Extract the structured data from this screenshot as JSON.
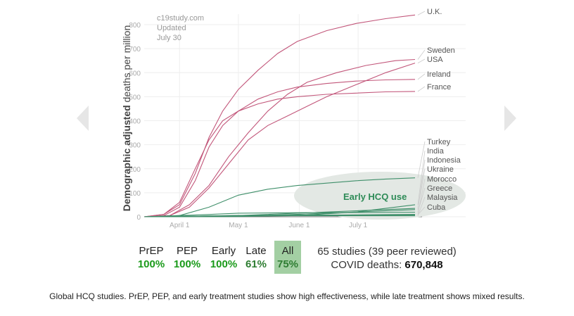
{
  "navigation": {
    "prev_icon": "chevron-left-icon",
    "next_icon": "chevron-right-icon"
  },
  "chart_data": {
    "type": "line",
    "source_note": [
      "c19study.com",
      "Updated",
      "July 30"
    ],
    "ylabel_bold": "Demographic adjusted",
    "ylabel_rest": " deaths per million",
    "ylim": [
      0,
      800
    ],
    "y_ticks": [
      0,
      100,
      200,
      300,
      400,
      500,
      600,
      700,
      800
    ],
    "x_ticks": [
      {
        "label": "April 1",
        "day": 0
      },
      {
        "label": "May 1",
        "day": 30
      },
      {
        "label": "June 1",
        "day": 61
      },
      {
        "label": "July 1",
        "day": 91
      }
    ],
    "x_range_days": [
      -18,
      120
    ],
    "grid": true,
    "annotation": "Early HCQ use",
    "colors": {
      "high": "#c2567a",
      "low": "#3f8f6a",
      "annotation": "#2e8b57"
    },
    "series": [
      {
        "name": "U.K.",
        "group": "high",
        "points": [
          [
            -18,
            0
          ],
          [
            -8,
            10
          ],
          [
            0,
            50
          ],
          [
            8,
            180
          ],
          [
            15,
            330
          ],
          [
            22,
            440
          ],
          [
            30,
            530
          ],
          [
            40,
            610
          ],
          [
            50,
            680
          ],
          [
            60,
            730
          ],
          [
            75,
            775
          ],
          [
            90,
            805
          ],
          [
            105,
            825
          ],
          [
            120,
            840
          ]
        ]
      },
      {
        "name": "Sweden",
        "group": "high",
        "points": [
          [
            -18,
            0
          ],
          [
            -5,
            5
          ],
          [
            5,
            50
          ],
          [
            15,
            130
          ],
          [
            25,
            250
          ],
          [
            35,
            350
          ],
          [
            45,
            440
          ],
          [
            55,
            510
          ],
          [
            65,
            560
          ],
          [
            80,
            600
          ],
          [
            95,
            630
          ],
          [
            110,
            650
          ],
          [
            120,
            655
          ]
        ]
      },
      {
        "name": "USA",
        "group": "high",
        "points": [
          [
            -18,
            0
          ],
          [
            -5,
            5
          ],
          [
            5,
            40
          ],
          [
            15,
            120
          ],
          [
            25,
            220
          ],
          [
            35,
            320
          ],
          [
            45,
            380
          ],
          [
            55,
            420
          ],
          [
            65,
            460
          ],
          [
            75,
            500
          ],
          [
            90,
            550
          ],
          [
            105,
            600
          ],
          [
            120,
            640
          ]
        ]
      },
      {
        "name": "Ireland",
        "group": "high",
        "points": [
          [
            -18,
            0
          ],
          [
            -8,
            5
          ],
          [
            0,
            40
          ],
          [
            8,
            150
          ],
          [
            15,
            290
          ],
          [
            22,
            380
          ],
          [
            30,
            440
          ],
          [
            40,
            490
          ],
          [
            50,
            520
          ],
          [
            60,
            540
          ],
          [
            75,
            555
          ],
          [
            90,
            565
          ],
          [
            105,
            570
          ],
          [
            120,
            572
          ]
        ]
      },
      {
        "name": "France",
        "group": "high",
        "points": [
          [
            -18,
            0
          ],
          [
            -8,
            10
          ],
          [
            0,
            60
          ],
          [
            8,
            200
          ],
          [
            15,
            320
          ],
          [
            22,
            400
          ],
          [
            30,
            440
          ],
          [
            40,
            470
          ],
          [
            50,
            490
          ],
          [
            60,
            500
          ],
          [
            75,
            510
          ],
          [
            90,
            515
          ],
          [
            105,
            520
          ],
          [
            120,
            522
          ]
        ]
      },
      {
        "name": "Turkey",
        "group": "low",
        "points": [
          [
            -18,
            0
          ],
          [
            0,
            5
          ],
          [
            15,
            40
          ],
          [
            30,
            90
          ],
          [
            45,
            115
          ],
          [
            60,
            130
          ],
          [
            75,
            140
          ],
          [
            90,
            150
          ],
          [
            105,
            157
          ],
          [
            120,
            162
          ]
        ]
      },
      {
        "name": "India",
        "group": "low",
        "points": [
          [
            -18,
            0
          ],
          [
            30,
            1
          ],
          [
            60,
            5
          ],
          [
            90,
            20
          ],
          [
            120,
            50
          ]
        ]
      },
      {
        "name": "Indonesia",
        "group": "low",
        "points": [
          [
            -18,
            0
          ],
          [
            30,
            3
          ],
          [
            60,
            10
          ],
          [
            90,
            20
          ],
          [
            120,
            30
          ]
        ]
      },
      {
        "name": "Ukraine",
        "group": "low",
        "points": [
          [
            -18,
            0
          ],
          [
            30,
            5
          ],
          [
            60,
            15
          ],
          [
            90,
            25
          ],
          [
            120,
            35
          ]
        ]
      },
      {
        "name": "Morocco",
        "group": "low",
        "points": [
          [
            -18,
            0
          ],
          [
            30,
            5
          ],
          [
            60,
            6
          ],
          [
            90,
            8
          ],
          [
            120,
            10
          ]
        ]
      },
      {
        "name": "Greece",
        "group": "low",
        "points": [
          [
            -18,
            0
          ],
          [
            10,
            8
          ],
          [
            30,
            15
          ],
          [
            60,
            17
          ],
          [
            90,
            18
          ],
          [
            120,
            19
          ]
        ]
      },
      {
        "name": "Malaysia",
        "group": "low",
        "points": [
          [
            -18,
            0
          ],
          [
            10,
            3
          ],
          [
            30,
            4
          ],
          [
            60,
            4
          ],
          [
            90,
            4
          ],
          [
            120,
            4
          ]
        ]
      },
      {
        "name": "Cuba",
        "group": "low",
        "points": [
          [
            -18,
            0
          ],
          [
            10,
            3
          ],
          [
            30,
            6
          ],
          [
            60,
            7
          ],
          [
            90,
            7
          ],
          [
            120,
            8
          ]
        ]
      }
    ]
  },
  "stats": {
    "categories": [
      {
        "label": "PrEP",
        "value": "100%"
      },
      {
        "label": "PEP",
        "value": "100%"
      },
      {
        "label": "Early",
        "value": "100%"
      },
      {
        "label": "Late",
        "value": "61%"
      },
      {
        "label": "All",
        "value": "75%"
      }
    ],
    "studies": "65 studies (39 peer reviewed)",
    "deaths_label": "COVID deaths: ",
    "deaths_value": "670,848"
  },
  "caption": "Global HCQ studies. PrEP, PEP, and early treatment studies show high effectiveness, while late treatment shows mixed results."
}
